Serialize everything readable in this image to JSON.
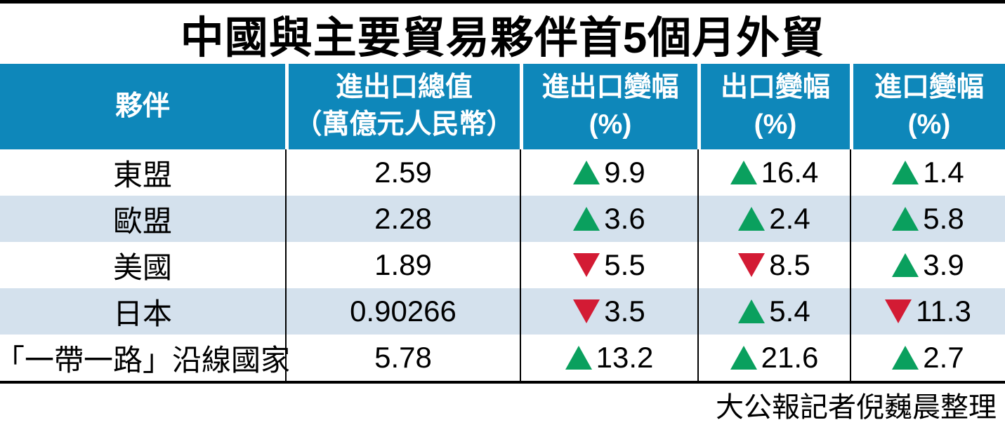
{
  "title": "中國與主要貿易夥伴首5個月外貿",
  "credit": "大公報記者倪巍晨整理",
  "colors": {
    "header_bg": "#0e87ba",
    "row_alt_bg": "#d4e1ed",
    "up": "#0aa05e",
    "down": "#d31b34",
    "border": "#000000"
  },
  "icons": {
    "up": "triangle-up",
    "down": "triangle-down"
  },
  "table": {
    "columns": [
      {
        "id": "partner",
        "label": "夥伴",
        "sublabel": ""
      },
      {
        "id": "total",
        "label": "進出口總值",
        "sublabel": "（萬億元人民幣）"
      },
      {
        "id": "total_change",
        "label": "進出口變幅",
        "sublabel": "(%)"
      },
      {
        "id": "export_change",
        "label": "出口變幅",
        "sublabel": "(%)"
      },
      {
        "id": "import_change",
        "label": "進口變幅",
        "sublabel": "(%)"
      }
    ],
    "rows": [
      {
        "partner": "東盟",
        "total": "2.59",
        "total_change": {
          "dir": "up",
          "value": "9.9"
        },
        "export_change": {
          "dir": "up",
          "value": "16.4"
        },
        "import_change": {
          "dir": "up",
          "value": "1.4"
        }
      },
      {
        "partner": "歐盟",
        "total": "2.28",
        "total_change": {
          "dir": "up",
          "value": "3.6"
        },
        "export_change": {
          "dir": "up",
          "value": "2.4"
        },
        "import_change": {
          "dir": "up",
          "value": "5.8"
        }
      },
      {
        "partner": "美國",
        "total": "1.89",
        "total_change": {
          "dir": "down",
          "value": "5.5"
        },
        "export_change": {
          "dir": "down",
          "value": "8.5"
        },
        "import_change": {
          "dir": "up",
          "value": "3.9"
        }
      },
      {
        "partner": "日本",
        "total": "0.90266",
        "total_change": {
          "dir": "down",
          "value": "3.5"
        },
        "export_change": {
          "dir": "up",
          "value": "5.4"
        },
        "import_change": {
          "dir": "down",
          "value": "11.3"
        }
      },
      {
        "partner": "「一帶一路」沿線國家",
        "total": "5.78",
        "total_change": {
          "dir": "up",
          "value": "13.2"
        },
        "export_change": {
          "dir": "up",
          "value": "21.6"
        },
        "import_change": {
          "dir": "up",
          "value": "2.7"
        }
      }
    ]
  },
  "chart_data": {
    "type": "table",
    "title": "中國與主要貿易夥伴首5個月外貿",
    "columns": [
      "夥伴",
      "進出口總值（萬億元人民幣）",
      "進出口變幅(%)",
      "出口變幅(%)",
      "進口變幅(%)"
    ],
    "rows": [
      [
        "東盟",
        2.59,
        9.9,
        16.4,
        1.4
      ],
      [
        "歐盟",
        2.28,
        3.6,
        2.4,
        5.8
      ],
      [
        "美國",
        1.89,
        -5.5,
        -8.5,
        3.9
      ],
      [
        "日本",
        0.90266,
        -3.5,
        5.4,
        -11.3
      ],
      [
        "「一帶一路」沿線國家",
        5.78,
        13.2,
        21.6,
        2.7
      ]
    ],
    "note": "正值以綠色上三角表示，負值以紅色下三角表示",
    "source": "大公報記者倪巍晨整理"
  }
}
